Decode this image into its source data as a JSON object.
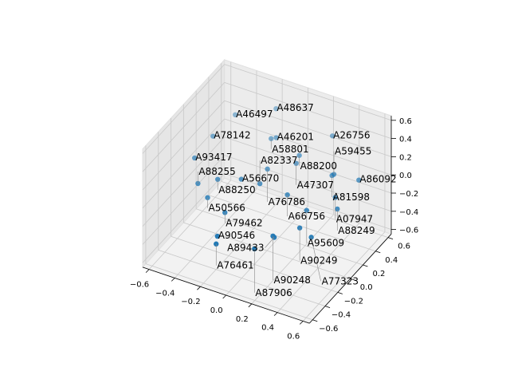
{
  "chart_data": {
    "type": "scatter3d",
    "title": "",
    "xlabel": "",
    "ylabel": "",
    "zlabel": "",
    "xlim": [
      -0.65,
      0.65
    ],
    "ylim": [
      -0.65,
      0.65
    ],
    "zlim": [
      -0.65,
      0.65
    ],
    "xticks": [
      -0.6,
      -0.4,
      -0.2,
      0.0,
      0.2,
      0.4,
      0.6
    ],
    "yticks": [
      -0.6,
      -0.4,
      -0.2,
      0.0,
      0.2,
      0.4,
      0.6
    ],
    "zticks": [
      -0.6,
      -0.4,
      -0.2,
      0.0,
      0.2,
      0.4,
      0.6
    ],
    "xtick_labels": [
      "−0.6",
      "−0.4",
      "−0.2",
      "0.0",
      "0.2",
      "0.4",
      "0.6"
    ],
    "ytick_labels": [
      "−0.6",
      "−0.4",
      "−0.2",
      "0.0",
      "0.2",
      "0.4",
      "0.6"
    ],
    "ztick_labels": [
      "−0.6",
      "−0.4",
      "−0.2",
      "0.0",
      "0.2",
      "0.4",
      "0.6"
    ],
    "grid": true,
    "color": "#1f77b4",
    "points": [
      {
        "label": "A46497",
        "x": -0.37,
        "y": 0.25,
        "z": 0.48
      },
      {
        "label": "A48637",
        "x": -0.14,
        "y": 0.43,
        "z": 0.52
      },
      {
        "label": "A78142",
        "x": -0.45,
        "y": 0.06,
        "z": 0.35
      },
      {
        "label": "A58801",
        "x": -0.1,
        "y": 0.27,
        "z": 0.33
      },
      {
        "label": "A46201",
        "x": -0.07,
        "y": 0.29,
        "z": 0.34
      },
      {
        "label": "A26756",
        "x": 0.26,
        "y": 0.51,
        "z": 0.35
      },
      {
        "label": "A88200",
        "x": 0.11,
        "y": 0.29,
        "z": 0.23
      },
      {
        "label": "A93417",
        "x": -0.51,
        "y": -0.11,
        "z": 0.21
      },
      {
        "label": "A47307",
        "x": 0.11,
        "y": 0.24,
        "z": 0.18
      },
      {
        "label": "A76786",
        "x": -0.05,
        "y": 0.11,
        "z": 0.14
      },
      {
        "label": "A81598",
        "x": 0.35,
        "y": 0.32,
        "z": 0.1
      },
      {
        "label": "A59455",
        "x": 0.36,
        "y": 0.33,
        "z": 0.11
      },
      {
        "label": "A86092",
        "x": 0.52,
        "y": 0.4,
        "z": 0.07
      },
      {
        "label": "A88255",
        "x": -0.43,
        "y": -0.22,
        "z": 0.05
      },
      {
        "label": "A88250",
        "x": -0.32,
        "y": -0.13,
        "z": 0.08
      },
      {
        "label": "A56670",
        "x": -0.18,
        "y": -0.04,
        "z": 0.08
      },
      {
        "label": "A82337",
        "x": -0.06,
        "y": 0.01,
        "z": 0.05
      },
      {
        "label": "A50566",
        "x": -0.34,
        "y": -0.25,
        "z": -0.04
      },
      {
        "label": "A66756",
        "x": 0.13,
        "y": 0.06,
        "z": -0.02
      },
      {
        "label": "A07947",
        "x": 0.42,
        "y": 0.23,
        "z": -0.04
      },
      {
        "label": "A88249",
        "x": 0.46,
        "y": 0.18,
        "z": -0.11
      },
      {
        "label": "A79462",
        "x": -0.2,
        "y": -0.26,
        "z": -0.13
      },
      {
        "label": "A95609",
        "x": 0.28,
        "y": 0.06,
        "z": -0.12
      },
      {
        "label": "A90249",
        "x": 0.28,
        "y": -0.05,
        "z": -0.23
      },
      {
        "label": "A90546",
        "x": -0.19,
        "y": -0.4,
        "z": -0.28
      },
      {
        "label": "A90248",
        "x": 0.14,
        "y": -0.19,
        "z": -0.28
      },
      {
        "label": "A89433",
        "x": 0.15,
        "y": -0.19,
        "z": -0.29
      },
      {
        "label": "A77323",
        "x": 0.37,
        "y": -0.05,
        "z": -0.29
      },
      {
        "label": "A76461",
        "x": -0.18,
        "y": -0.44,
        "z": -0.33
      },
      {
        "label": "A87906",
        "x": 0.06,
        "y": -0.32,
        "z": -0.36
      }
    ]
  }
}
